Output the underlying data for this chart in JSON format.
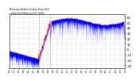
{
  "title": "Milwaukee Weather Outdoor Temp (Red) vs Wind Chill (Blue) per Minute (24 Hours)",
  "ylabel_right_values": [
    60,
    50,
    40,
    30,
    20,
    10,
    0,
    -10,
    -20,
    -30
  ],
  "ylim": [
    -35,
    65
  ],
  "xlim": [
    0,
    1440
  ],
  "background_color": "#ffffff",
  "grid_color": "#cccccc",
  "temp_color": "#ff0000",
  "windchill_color": "#0000ff",
  "vline_positions": [
    370,
    510
  ],
  "vline_color": "#888888",
  "n_points": 1440,
  "seed": 12345
}
